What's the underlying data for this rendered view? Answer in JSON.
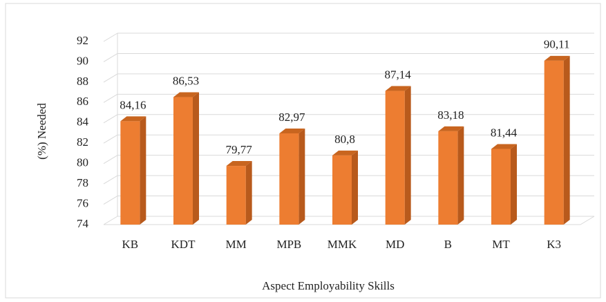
{
  "chart_data": {
    "type": "bar",
    "x_label": "Aspect Employability Skills",
    "y_label": "(%) Needed",
    "categories": [
      "KB",
      "KDT",
      "MM",
      "MPB",
      "MMK",
      "MD",
      "B",
      "MT",
      "K3"
    ],
    "values": [
      84.16,
      86.53,
      79.77,
      82.97,
      80.8,
      87.14,
      83.18,
      81.44,
      90.11
    ],
    "value_labels": [
      "84,16",
      "86,53",
      "79,77",
      "82,97",
      "80,8",
      "87,14",
      "83,18",
      "81,44",
      "90,11"
    ],
    "color": "#ed7d31",
    "ylim": [
      74,
      92
    ],
    "yticks": [
      74,
      76,
      78,
      80,
      82,
      84,
      86,
      88,
      90,
      92
    ],
    "grid": true
  }
}
